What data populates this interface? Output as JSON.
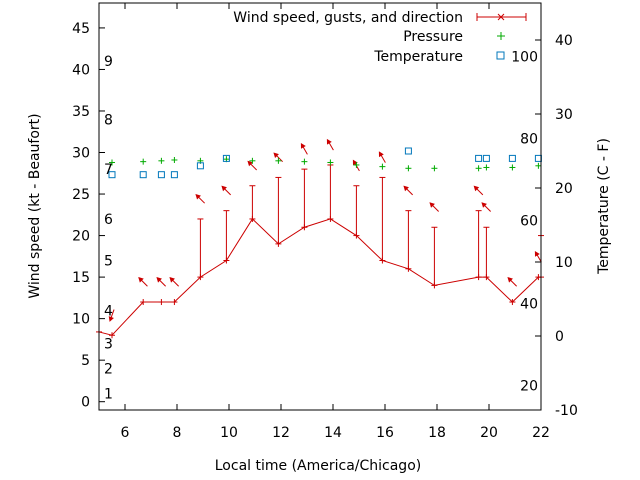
{
  "chart_data": {
    "type": "line",
    "xlabel": "Local time (America/Chicago)",
    "ylabel": "Wind speed (kt - Beaufort)",
    "y2label": "Temperature (C - F)",
    "xlim": [
      5,
      22
    ],
    "ylim": [
      -1,
      48
    ],
    "y2lim": [
      -10,
      45
    ],
    "x_ticks": [
      "6",
      "8",
      "10",
      "12",
      "14",
      "16",
      "18",
      "20",
      "22"
    ],
    "x_tick_values": [
      6,
      8,
      10,
      12,
      14,
      16,
      18,
      20,
      22
    ],
    "y_ticks": [
      "0",
      "5",
      "10",
      "15",
      "20",
      "25",
      "30",
      "35",
      "40",
      "45"
    ],
    "y_tick_values": [
      0,
      5,
      10,
      15,
      20,
      25,
      30,
      35,
      40,
      45
    ],
    "y2_ticks": [
      "-10",
      "0",
      "10",
      "20",
      "30",
      "40"
    ],
    "y2_tick_values": [
      -10,
      0,
      10,
      20,
      30,
      40
    ],
    "beaufort_labels": [
      {
        "text": "1",
        "y": 1
      },
      {
        "text": "2",
        "y": 4
      },
      {
        "text": "3",
        "y": 7
      },
      {
        "text": "4",
        "y": 11
      },
      {
        "text": "5",
        "y": 17
      },
      {
        "text": "6",
        "y": 22
      },
      {
        "text": "7",
        "y": 28
      },
      {
        "text": "8",
        "y": 34
      },
      {
        "text": "9",
        "y": 41
      }
    ],
    "fahrenheit_labels": [
      {
        "text": "20",
        "y2": -6.7
      },
      {
        "text": "40",
        "y2": 4.4
      },
      {
        "text": "60",
        "y2": 15.6
      },
      {
        "text": "80",
        "y2": 26.7
      },
      {
        "text": "100",
        "y2": 37.8
      }
    ],
    "legend": {
      "placement": "top-right"
    },
    "series": [
      {
        "name": "Wind speed, gusts, and direction",
        "color": "#cc0000",
        "x": [
          5.0,
          5.5,
          6.7,
          7.4,
          7.9,
          8.9,
          9.9,
          10.9,
          11.9,
          12.9,
          13.9,
          14.9,
          15.9,
          16.9,
          17.9,
          19.6,
          19.9,
          20.9,
          21.9,
          22.0
        ],
        "y": [
          8.4,
          8,
          12,
          12,
          12,
          15,
          17,
          22,
          19,
          21,
          22,
          20,
          17,
          16,
          14,
          15,
          15,
          12,
          15,
          15
        ],
        "gusts": [
          null,
          null,
          null,
          null,
          null,
          22,
          23,
          26,
          27,
          28,
          28.5,
          26,
          27,
          23,
          21,
          23,
          21,
          null,
          null,
          20
        ],
        "direction_deg": [
          null,
          200,
          315,
          315,
          315,
          315,
          315,
          315,
          315,
          330,
          330,
          330,
          330,
          315,
          315,
          315,
          315,
          315,
          330,
          330
        ],
        "arrow_x": [
          5.5,
          6.7,
          7.4,
          7.9,
          8.9,
          9.9,
          10.9,
          11.9,
          12.9,
          13.9,
          14.9,
          15.9,
          16.9,
          17.9,
          19.6,
          19.9,
          20.9,
          21.9
        ]
      },
      {
        "name": "Pressure",
        "color": "#00aa00",
        "marker": "plus",
        "x": [
          5.5,
          6.7,
          7.4,
          7.9,
          8.9,
          9.9,
          10.9,
          11.9,
          12.9,
          13.9,
          14.9,
          15.9,
          16.9,
          17.9,
          19.6,
          19.9,
          20.9,
          21.9
        ],
        "y": [
          28.8,
          28.9,
          29.0,
          29.1,
          29.0,
          29.2,
          29.0,
          29.0,
          28.9,
          28.8,
          28.5,
          28.3,
          28.1,
          28.1,
          28.1,
          28.2,
          28.2,
          28.4
        ]
      },
      {
        "name": "Temperature",
        "color": "#0077bb",
        "marker": "square",
        "x": [
          5.5,
          6.7,
          7.4,
          7.9,
          8.9,
          9.9,
          16.9,
          19.6,
          19.9,
          20.9,
          21.9
        ],
        "y2": [
          21.8,
          21.8,
          21.8,
          21.8,
          23.0,
          24.0,
          25.0,
          24.0,
          24.0,
          24.0,
          24.0
        ]
      }
    ]
  }
}
